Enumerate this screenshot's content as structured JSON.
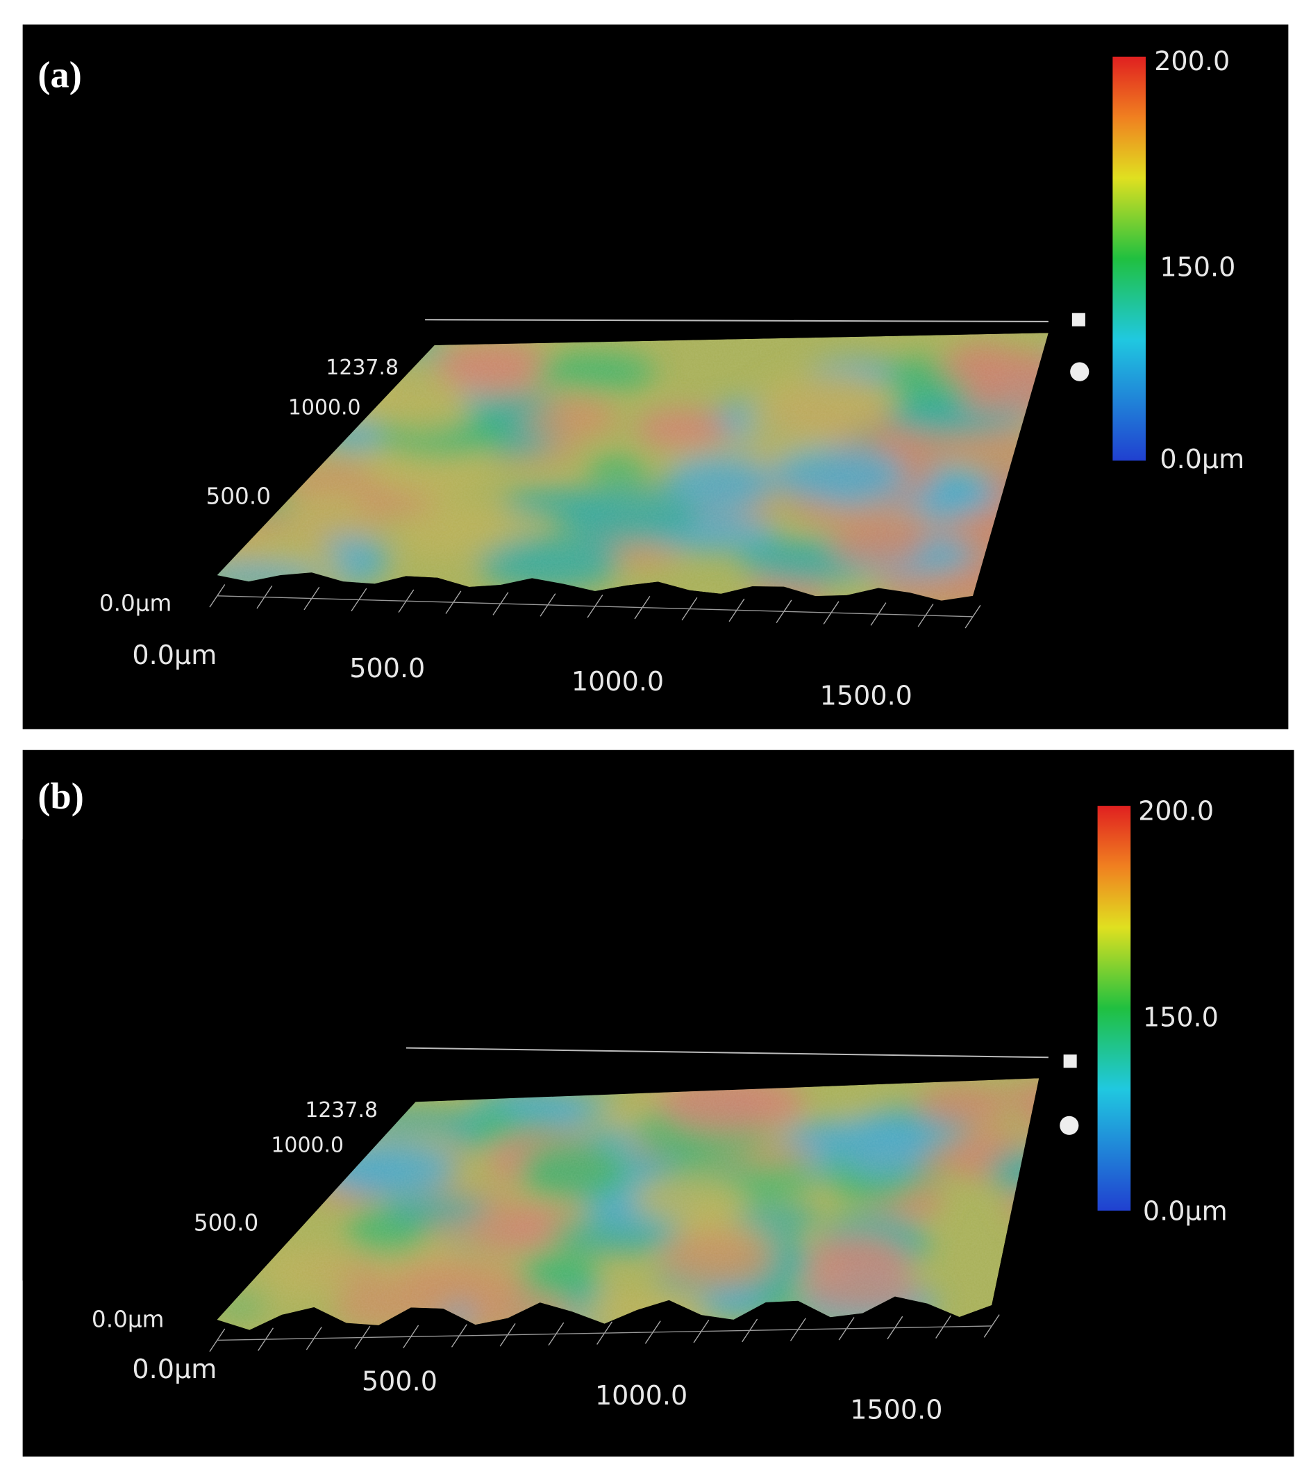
{
  "panels": [
    {
      "label": "(a)",
      "colorbar": {
        "ticks": [
          "200.0",
          "150.0",
          "0.0µm"
        ]
      },
      "y_axis": {
        "ticks": [
          "1237.8",
          "1000.0",
          "500.0",
          "0.0µm"
        ]
      },
      "x_axis": {
        "ticks": [
          "0.0µm",
          "500.0",
          "1000.0",
          "1500.0"
        ]
      }
    },
    {
      "label": "(b)",
      "colorbar": {
        "ticks": [
          "200.0",
          "150.0",
          "0.0µm"
        ]
      },
      "y_axis": {
        "ticks": [
          "1237.8",
          "1000.0",
          "500.0",
          "0.0µm"
        ]
      },
      "x_axis": {
        "ticks": [
          "0.0µm",
          "500.0",
          "1000.0",
          "1500.0"
        ]
      }
    }
  ]
}
